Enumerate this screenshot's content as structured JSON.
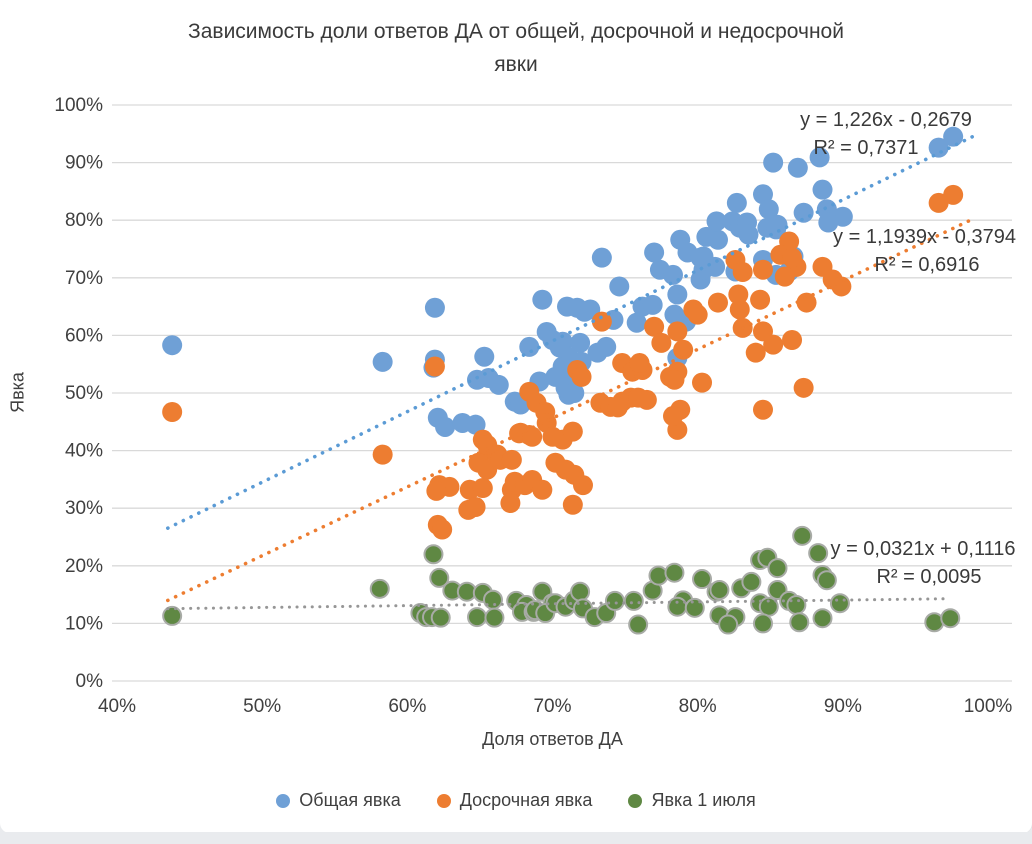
{
  "title_line1": "Зависимость доли ответов ДА от общей, досрочной и недосрочной",
  "title_line2": "явки",
  "axes": {
    "x": {
      "label": "Доля ответов ДА",
      "ticks": [
        "40%",
        "50%",
        "60%",
        "70%",
        "80%",
        "90%",
        "100%"
      ]
    },
    "y": {
      "label": "Явка",
      "ticks": [
        "0%",
        "10%",
        "20%",
        "30%",
        "40%",
        "50%",
        "60%",
        "70%",
        "80%",
        "90%",
        "100%"
      ]
    }
  },
  "annotations": {
    "blue_eq": "y = 1,226x - 0,2679",
    "blue_r2": "R² = 0,7371",
    "orange_eq": "y = 1,1939x - 0,3794",
    "orange_r2": "R² = 0,6916",
    "green_eq": "y = 0,0321x + 0,1116",
    "green_r2": "R² = 0,0095"
  },
  "colors": {
    "gridline": "#d9d9d9",
    "axis_text": "#404040",
    "blue_trend": "#5b9bd5",
    "orange_trend": "#ed7d31",
    "gray_trend": "#969696",
    "green_stroke": "#a8aba6"
  },
  "chart_data": {
    "type": "scatter",
    "title": "Зависимость доли ответов ДА от общей, досрочной и недосрочной явки",
    "xlabel": "Доля ответов ДА",
    "ylabel": "Явка",
    "xlim": [
      40,
      100
    ],
    "ylim": [
      0,
      100
    ],
    "grid": "horizontal",
    "legend_position": "bottom",
    "units": "percent",
    "series": [
      {
        "name": "Общая явка",
        "color": "#6fa0d6",
        "trend": {
          "slope": 1.226,
          "intercept": -0.2679,
          "r2": 0.7371,
          "x_start": 43.5,
          "x_end": 99.0
        },
        "points": [
          [
            43.8,
            58.3
          ],
          [
            58.3,
            55.4
          ],
          [
            61.9,
            64.8
          ],
          [
            61.9,
            55.8
          ],
          [
            61.8,
            54.4
          ],
          [
            62.1,
            45.7
          ],
          [
            62.6,
            44.1
          ],
          [
            63.8,
            44.8
          ],
          [
            64.7,
            44.5
          ],
          [
            64.8,
            52.3
          ],
          [
            65.6,
            52.6
          ],
          [
            66.3,
            51.4
          ],
          [
            65.3,
            56.3
          ],
          [
            67.4,
            48.5
          ],
          [
            67.8,
            48.0
          ],
          [
            68.4,
            58.0
          ],
          [
            69.1,
            52.0
          ],
          [
            69.3,
            66.2
          ],
          [
            69.6,
            60.6
          ],
          [
            70.0,
            59.2
          ],
          [
            70.7,
            58.9
          ],
          [
            70.7,
            54.6
          ],
          [
            71.4,
            53.5
          ],
          [
            71.1,
            49.7
          ],
          [
            70.2,
            52.8
          ],
          [
            70.9,
            50.9
          ],
          [
            71.5,
            50.0
          ],
          [
            71.1,
            56.3
          ],
          [
            72.0,
            55.4
          ],
          [
            71.7,
            64.8
          ],
          [
            72.2,
            64.1
          ],
          [
            71.0,
            65.0
          ],
          [
            72.6,
            64.5
          ],
          [
            71.9,
            58.7
          ],
          [
            73.1,
            57.0
          ],
          [
            70.5,
            57.9
          ],
          [
            73.7,
            58.0
          ],
          [
            73.4,
            73.5
          ],
          [
            74.2,
            62.7
          ],
          [
            74.6,
            68.5
          ],
          [
            75.8,
            62.2
          ],
          [
            76.2,
            65.0
          ],
          [
            76.9,
            65.3
          ],
          [
            77.4,
            71.4
          ],
          [
            77.0,
            74.4
          ],
          [
            78.3,
            70.5
          ],
          [
            78.6,
            67.1
          ],
          [
            78.4,
            63.6
          ],
          [
            78.6,
            56.1
          ],
          [
            78.8,
            76.6
          ],
          [
            79.2,
            62.4
          ],
          [
            79.3,
            74.4
          ],
          [
            80.2,
            69.7
          ],
          [
            80.2,
            73.5
          ],
          [
            80.4,
            71.4
          ],
          [
            80.6,
            77.1
          ],
          [
            81.4,
            76.6
          ],
          [
            81.3,
            79.8
          ],
          [
            82.4,
            79.8
          ],
          [
            82.9,
            78.7
          ],
          [
            83.4,
            79.6
          ],
          [
            82.7,
            83.0
          ],
          [
            83.5,
            77.5
          ],
          [
            84.5,
            84.5
          ],
          [
            84.9,
            81.9
          ],
          [
            84.8,
            78.7
          ],
          [
            85.5,
            79.2
          ],
          [
            85.4,
            78.4
          ],
          [
            85.2,
            90.0
          ],
          [
            86.9,
            89.1
          ],
          [
            88.4,
            90.9
          ],
          [
            88.6,
            85.3
          ],
          [
            87.3,
            81.3
          ],
          [
            88.9,
            81.9
          ],
          [
            90.0,
            80.6
          ],
          [
            89.0,
            79.6
          ],
          [
            96.6,
            92.6
          ],
          [
            97.6,
            94.5
          ],
          [
            84.5,
            73.1
          ],
          [
            85.4,
            70.5
          ],
          [
            86.3,
            71.1
          ],
          [
            82.6,
            71.1
          ],
          [
            81.2,
            71.9
          ],
          [
            80.4,
            73.7
          ],
          [
            86.6,
            73.7
          ]
        ]
      },
      {
        "name": "Досрочная явка",
        "color": "#ed7d31",
        "trend": {
          "slope": 1.1939,
          "intercept": -0.3794,
          "r2": 0.6916,
          "x_start": 43.5,
          "x_end": 99.0
        },
        "points": [
          [
            43.8,
            46.7
          ],
          [
            58.3,
            39.3
          ],
          [
            61.9,
            54.6
          ],
          [
            62.2,
            34.0
          ],
          [
            62.9,
            33.7
          ],
          [
            62.0,
            33.0
          ],
          [
            62.1,
            27.1
          ],
          [
            62.4,
            26.3
          ],
          [
            64.2,
            29.7
          ],
          [
            64.3,
            33.2
          ],
          [
            64.7,
            30.2
          ],
          [
            65.2,
            41.9
          ],
          [
            65.6,
            40.1
          ],
          [
            66.2,
            39.3
          ],
          [
            64.9,
            37.9
          ],
          [
            65.5,
            36.7
          ],
          [
            65.2,
            33.5
          ],
          [
            66.4,
            38.4
          ],
          [
            67.2,
            38.4
          ],
          [
            67.2,
            33.2
          ],
          [
            67.1,
            30.9
          ],
          [
            67.4,
            34.6
          ],
          [
            68.1,
            34.0
          ],
          [
            68.6,
            34.9
          ],
          [
            69.3,
            33.2
          ],
          [
            68.4,
            50.2
          ],
          [
            68.9,
            48.3
          ],
          [
            69.5,
            46.7
          ],
          [
            69.6,
            44.8
          ],
          [
            67.8,
            43.1
          ],
          [
            68.4,
            42.7
          ],
          [
            67.7,
            43.0
          ],
          [
            68.6,
            42.4
          ],
          [
            70.0,
            42.4
          ],
          [
            70.7,
            41.9
          ],
          [
            71.4,
            43.3
          ],
          [
            70.2,
            37.9
          ],
          [
            70.9,
            36.7
          ],
          [
            71.5,
            35.8
          ],
          [
            72.1,
            34.0
          ],
          [
            71.4,
            30.6
          ],
          [
            71.7,
            54.0
          ],
          [
            72.0,
            52.8
          ],
          [
            73.4,
            62.4
          ],
          [
            74.8,
            55.2
          ],
          [
            75.5,
            53.7
          ],
          [
            76.2,
            54.0
          ],
          [
            73.3,
            48.3
          ],
          [
            74.0,
            47.6
          ],
          [
            74.8,
            48.5
          ],
          [
            75.4,
            49.2
          ],
          [
            75.9,
            49.2
          ],
          [
            76.5,
            48.8
          ],
          [
            76.0,
            55.2
          ],
          [
            77.0,
            61.5
          ],
          [
            77.5,
            58.7
          ],
          [
            78.6,
            60.7
          ],
          [
            79.0,
            57.5
          ],
          [
            78.6,
            53.7
          ],
          [
            78.1,
            52.8
          ],
          [
            78.4,
            52.3
          ],
          [
            80.3,
            51.8
          ],
          [
            79.7,
            64.5
          ],
          [
            80.0,
            63.6
          ],
          [
            81.4,
            65.7
          ],
          [
            82.9,
            64.5
          ],
          [
            83.1,
            61.3
          ],
          [
            84.5,
            60.7
          ],
          [
            85.2,
            58.4
          ],
          [
            84.0,
            57.0
          ],
          [
            86.5,
            59.2
          ],
          [
            87.3,
            50.9
          ],
          [
            78.8,
            47.1
          ],
          [
            78.6,
            43.6
          ],
          [
            78.3,
            46.0
          ],
          [
            84.5,
            47.1
          ],
          [
            86.3,
            76.3
          ],
          [
            86.8,
            71.9
          ],
          [
            88.6,
            71.9
          ],
          [
            89.3,
            69.7
          ],
          [
            89.9,
            68.5
          ],
          [
            85.7,
            74.0
          ],
          [
            86.5,
            73.5
          ],
          [
            82.6,
            73.1
          ],
          [
            83.1,
            71.0
          ],
          [
            84.5,
            71.4
          ],
          [
            82.8,
            67.1
          ],
          [
            84.3,
            66.2
          ],
          [
            86.0,
            70.2
          ],
          [
            87.5,
            65.7
          ],
          [
            96.6,
            83.0
          ],
          [
            97.6,
            84.4
          ],
          [
            74.5,
            47.5
          ],
          [
            65.5,
            41.0
          ]
        ]
      },
      {
        "name": "Явка 1 июля",
        "color": "#5f8843",
        "trend": {
          "slope": 0.0321,
          "intercept": 0.1116,
          "r2": 0.0095,
          "x_start": 43.5,
          "x_end": 97.0
        },
        "points": [
          [
            43.8,
            11.3
          ],
          [
            58.1,
            16.0
          ],
          [
            60.9,
            11.8
          ],
          [
            61.3,
            11.1
          ],
          [
            61.8,
            22.0
          ],
          [
            62.2,
            17.9
          ],
          [
            61.7,
            11.1
          ],
          [
            62.3,
            11.0
          ],
          [
            63.1,
            15.7
          ],
          [
            64.1,
            15.5
          ],
          [
            65.2,
            15.3
          ],
          [
            65.9,
            14.1
          ],
          [
            64.8,
            11.1
          ],
          [
            66.0,
            11.0
          ],
          [
            67.5,
            13.9
          ],
          [
            68.2,
            13.2
          ],
          [
            67.9,
            12.0
          ],
          [
            68.7,
            12.0
          ],
          [
            69.3,
            15.5
          ],
          [
            70.0,
            13.5
          ],
          [
            68.8,
            12.3
          ],
          [
            69.5,
            11.8
          ],
          [
            70.2,
            13.5
          ],
          [
            70.9,
            12.9
          ],
          [
            71.5,
            14.0
          ],
          [
            71.9,
            15.5
          ],
          [
            72.1,
            12.6
          ],
          [
            72.9,
            11.1
          ],
          [
            73.7,
            11.8
          ],
          [
            74.3,
            13.9
          ],
          [
            75.6,
            13.9
          ],
          [
            75.9,
            9.8
          ],
          [
            76.9,
            15.7
          ],
          [
            77.3,
            18.3
          ],
          [
            78.4,
            18.8
          ],
          [
            79.0,
            14.0
          ],
          [
            78.6,
            12.9
          ],
          [
            80.3,
            17.7
          ],
          [
            81.3,
            15.5
          ],
          [
            79.8,
            12.7
          ],
          [
            81.5,
            15.8
          ],
          [
            81.5,
            11.4
          ],
          [
            82.6,
            11.1
          ],
          [
            82.1,
            9.8
          ],
          [
            83.0,
            16.1
          ],
          [
            83.7,
            17.2
          ],
          [
            84.3,
            21.0
          ],
          [
            84.8,
            21.4
          ],
          [
            85.5,
            19.6
          ],
          [
            85.5,
            15.8
          ],
          [
            84.3,
            13.5
          ],
          [
            84.9,
            12.9
          ],
          [
            86.3,
            13.9
          ],
          [
            86.8,
            13.2
          ],
          [
            84.5,
            10.0
          ],
          [
            87.0,
            10.2
          ],
          [
            87.2,
            25.2
          ],
          [
            88.3,
            22.2
          ],
          [
            88.6,
            18.4
          ],
          [
            88.9,
            17.5
          ],
          [
            88.6,
            10.9
          ],
          [
            89.8,
            13.5
          ],
          [
            96.3,
            10.2
          ],
          [
            97.4,
            10.9
          ]
        ]
      }
    ]
  }
}
